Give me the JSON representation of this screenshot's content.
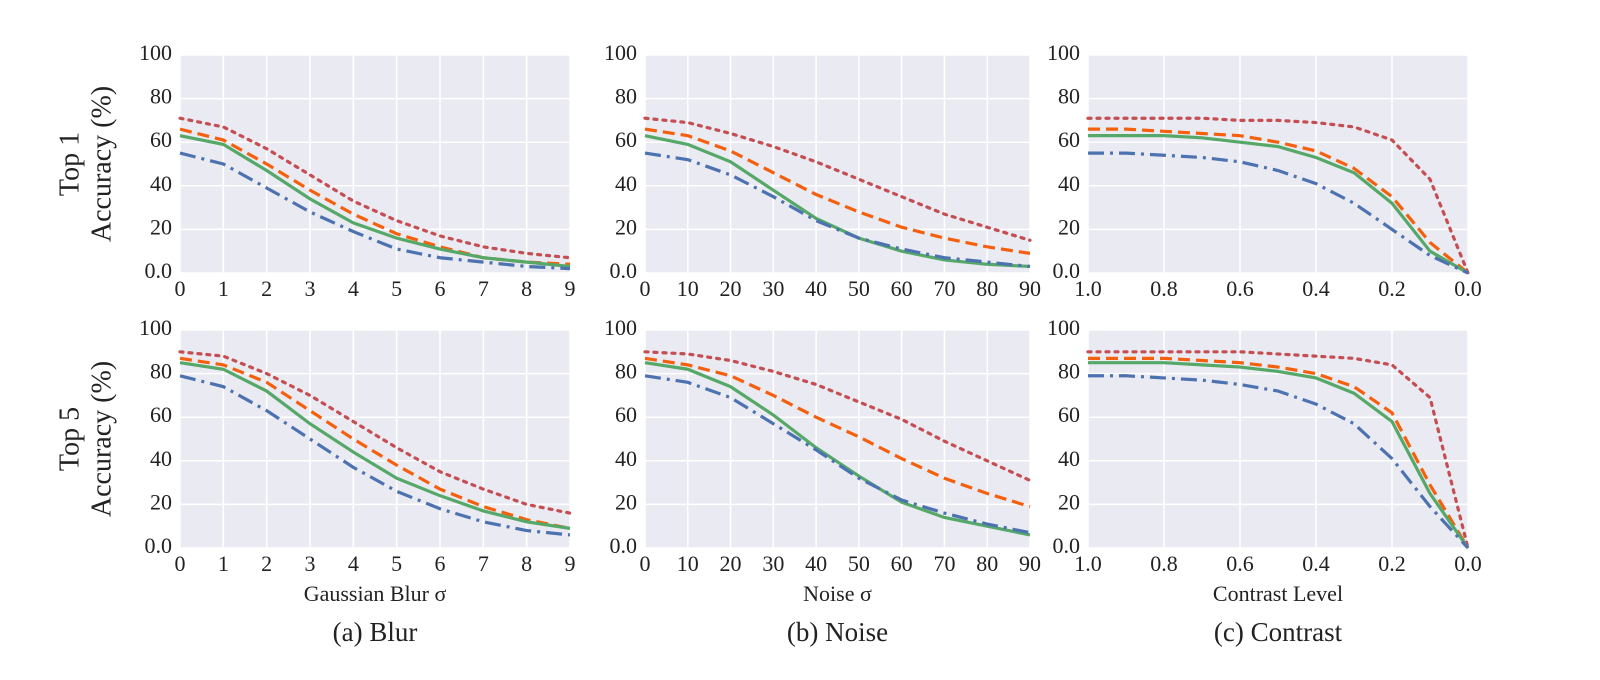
{
  "chart_data": [
    {
      "type": "line",
      "row_label": "Top 1",
      "ylabel": "Accuracy (%)",
      "grid": true,
      "x": [
        0,
        1,
        2,
        3,
        4,
        5,
        6,
        7,
        8,
        9
      ],
      "xlim": [
        0,
        9
      ],
      "xticks": [
        0,
        1,
        2,
        3,
        4,
        5,
        6,
        7,
        8,
        9
      ],
      "ylim": [
        0,
        100
      ],
      "yticks": [
        {
          "value": 0,
          "label": "0.0"
        },
        20,
        40,
        60,
        80,
        100
      ],
      "series": [
        {
          "color": "#c44e52",
          "dash": "dotted",
          "values": [
            71,
            67,
            57,
            45,
            33,
            24,
            17,
            12,
            9,
            7
          ]
        },
        {
          "color": "#f5600f",
          "dash": "dashed",
          "values": [
            66,
            61,
            50,
            38,
            27,
            18,
            12,
            7,
            5,
            4
          ]
        },
        {
          "color": "#55a868",
          "dash": "solid",
          "values": [
            63,
            59,
            47,
            34,
            23,
            16,
            11,
            7,
            5,
            3
          ]
        },
        {
          "color": "#4c72b0",
          "dash": "dashdot",
          "values": [
            55,
            50,
            39,
            28,
            19,
            11,
            7,
            5,
            3,
            2
          ]
        }
      ]
    },
    {
      "type": "line",
      "grid": true,
      "x": [
        0,
        10,
        20,
        30,
        40,
        50,
        60,
        70,
        80,
        90
      ],
      "xlim": [
        0,
        90
      ],
      "xticks": [
        0,
        10,
        20,
        30,
        40,
        50,
        60,
        70,
        80,
        90
      ],
      "ylim": [
        0,
        100
      ],
      "yticks": [
        {
          "value": 0,
          "label": "0.0"
        },
        20,
        40,
        60,
        80,
        100
      ],
      "series": [
        {
          "color": "#c44e52",
          "dash": "dotted",
          "values": [
            71,
            69,
            64,
            58,
            51,
            43,
            35,
            27,
            21,
            15
          ]
        },
        {
          "color": "#f5600f",
          "dash": "dashed",
          "values": [
            66,
            63,
            56,
            46,
            36,
            28,
            21,
            16,
            12,
            9
          ]
        },
        {
          "color": "#55a868",
          "dash": "solid",
          "values": [
            63,
            59,
            51,
            38,
            25,
            16,
            10,
            6,
            4,
            3
          ]
        },
        {
          "color": "#4c72b0",
          "dash": "dashdot",
          "values": [
            55,
            52,
            45,
            35,
            24,
            16,
            11,
            7,
            5,
            3
          ]
        }
      ]
    },
    {
      "type": "line",
      "grid": true,
      "x": [
        1,
        0.9,
        0.8,
        0.7,
        0.6,
        0.5,
        0.4,
        0.3,
        0.2,
        0.1,
        0
      ],
      "xlim": [
        1,
        0
      ],
      "xticks": [
        {
          "value": 1,
          "label": "1.0"
        },
        0.8,
        0.6,
        0.4,
        0.2,
        {
          "value": 0,
          "label": "0.0"
        }
      ],
      "ylim": [
        0,
        100
      ],
      "yticks": [
        {
          "value": 0,
          "label": "0.0"
        },
        20,
        40,
        60,
        80,
        100
      ],
      "series": [
        {
          "color": "#c44e52",
          "dash": "dotted",
          "values": [
            71,
            71,
            71,
            71,
            70,
            70,
            69,
            67,
            61,
            43,
            0
          ]
        },
        {
          "color": "#f5600f",
          "dash": "dashed",
          "values": [
            66,
            66,
            65,
            64,
            63,
            60,
            56,
            48,
            35,
            14,
            0
          ]
        },
        {
          "color": "#55a868",
          "dash": "solid",
          "values": [
            63,
            63,
            63,
            62,
            60,
            58,
            53,
            46,
            32,
            10,
            0
          ]
        },
        {
          "color": "#4c72b0",
          "dash": "dashdot",
          "values": [
            55,
            55,
            54,
            53,
            51,
            47,
            41,
            32,
            20,
            8,
            0
          ]
        }
      ]
    },
    {
      "type": "line",
      "row_label": "Top 5",
      "ylabel": "Accuracy (%)",
      "xlabel": "Gaussian Blur σ",
      "caption": "(a) Blur",
      "grid": true,
      "x": [
        0,
        1,
        2,
        3,
        4,
        5,
        6,
        7,
        8,
        9
      ],
      "xlim": [
        0,
        9
      ],
      "xticks": [
        0,
        1,
        2,
        3,
        4,
        5,
        6,
        7,
        8,
        9
      ],
      "ylim": [
        0,
        100
      ],
      "yticks": [
        {
          "value": 0,
          "label": "0.0"
        },
        20,
        40,
        60,
        80,
        100
      ],
      "series": [
        {
          "color": "#c44e52",
          "dash": "dotted",
          "values": [
            90,
            88,
            80,
            70,
            58,
            46,
            35,
            27,
            20,
            16
          ]
        },
        {
          "color": "#f5600f",
          "dash": "dashed",
          "values": [
            87,
            84,
            76,
            63,
            50,
            38,
            27,
            19,
            13,
            9
          ]
        },
        {
          "color": "#55a868",
          "dash": "solid",
          "values": [
            85,
            82,
            72,
            57,
            44,
            32,
            24,
            17,
            12,
            9
          ]
        },
        {
          "color": "#4c72b0",
          "dash": "dashdot",
          "values": [
            79,
            74,
            63,
            50,
            37,
            26,
            18,
            12,
            8,
            6
          ]
        }
      ]
    },
    {
      "type": "line",
      "xlabel": "Noise σ",
      "caption": "(b) Noise",
      "grid": true,
      "x": [
        0,
        10,
        20,
        30,
        40,
        50,
        60,
        70,
        80,
        90
      ],
      "xlim": [
        0,
        90
      ],
      "xticks": [
        0,
        10,
        20,
        30,
        40,
        50,
        60,
        70,
        80,
        90
      ],
      "ylim": [
        0,
        100
      ],
      "yticks": [
        {
          "value": 0,
          "label": "0.0"
        },
        20,
        40,
        60,
        80,
        100
      ],
      "series": [
        {
          "color": "#c44e52",
          "dash": "dotted",
          "values": [
            90,
            89,
            86,
            81,
            75,
            67,
            59,
            49,
            40,
            31
          ]
        },
        {
          "color": "#f5600f",
          "dash": "dashed",
          "values": [
            87,
            84,
            79,
            70,
            60,
            51,
            41,
            32,
            25,
            19
          ]
        },
        {
          "color": "#55a868",
          "dash": "solid",
          "values": [
            85,
            82,
            74,
            61,
            46,
            33,
            21,
            14,
            10,
            6
          ]
        },
        {
          "color": "#4c72b0",
          "dash": "dashdot",
          "values": [
            79,
            76,
            69,
            57,
            45,
            32,
            22,
            16,
            11,
            7
          ]
        }
      ]
    },
    {
      "type": "line",
      "xlabel": "Contrast Level",
      "caption": "(c) Contrast",
      "grid": true,
      "x": [
        1,
        0.9,
        0.8,
        0.7,
        0.6,
        0.5,
        0.4,
        0.3,
        0.2,
        0.1,
        0
      ],
      "xlim": [
        1,
        0
      ],
      "xticks": [
        {
          "value": 1,
          "label": "1.0"
        },
        0.8,
        0.6,
        0.4,
        0.2,
        {
          "value": 0,
          "label": "0.0"
        }
      ],
      "ylim": [
        0,
        100
      ],
      "yticks": [
        {
          "value": 0,
          "label": "0.0"
        },
        20,
        40,
        60,
        80,
        100
      ],
      "series": [
        {
          "color": "#c44e52",
          "dash": "dotted",
          "values": [
            90,
            90,
            90,
            90,
            90,
            89,
            88,
            87,
            84,
            69,
            0
          ]
        },
        {
          "color": "#f5600f",
          "dash": "dashed",
          "values": [
            87,
            87,
            87,
            86,
            85,
            83,
            80,
            74,
            62,
            29,
            0
          ]
        },
        {
          "color": "#55a868",
          "dash": "solid",
          "values": [
            85,
            85,
            85,
            84,
            83,
            81,
            78,
            71,
            58,
            25,
            0
          ]
        },
        {
          "color": "#4c72b0",
          "dash": "dashdot",
          "values": [
            79,
            79,
            78,
            77,
            75,
            72,
            66,
            57,
            41,
            19,
            0
          ]
        }
      ]
    }
  ]
}
